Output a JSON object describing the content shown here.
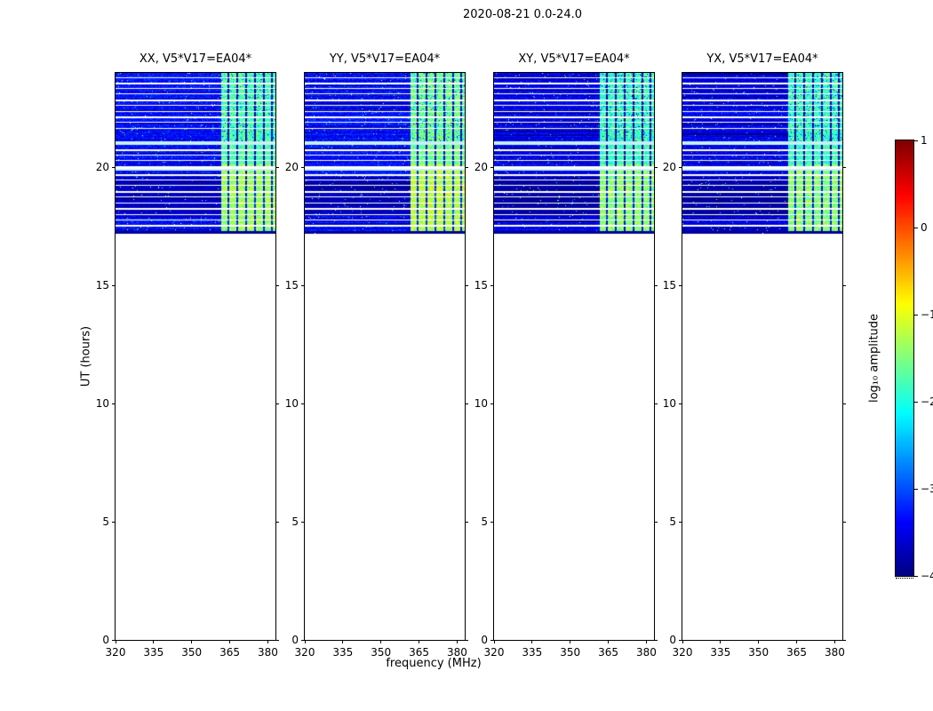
{
  "chart_data": {
    "type": "heatmap",
    "title": "2020-08-21 0.0-24.0",
    "xlabel": "frequency (MHz)",
    "ylabel": "UT (hours)",
    "xlim": [
      320,
      383
    ],
    "ylim": [
      0,
      24
    ],
    "xticks": [
      320,
      335,
      350,
      365,
      380
    ],
    "yticks": [
      0,
      5,
      10,
      15,
      20
    ],
    "panels": [
      {
        "label": "XX, V5*V17=EA04*",
        "noise_offset": 0,
        "band_offset": 0
      },
      {
        "label": "YY, V5*V17=EA04*",
        "noise_offset": 0,
        "band_offset": 0.15
      },
      {
        "label": "XY, V5*V17=EA04*",
        "noise_offset": -0.15,
        "band_offset": -0.1
      },
      {
        "label": "YX, V5*V17=EA04*",
        "noise_offset": -0.15,
        "band_offset": -0.1
      }
    ],
    "colorbar": {
      "label": "log₁₀ amplitude",
      "ticks": [
        1,
        0,
        -1,
        -2,
        -3,
        -4
      ],
      "range": [
        -4,
        1
      ],
      "colormap": "jet"
    },
    "data_extent": {
      "time_start": 17.2,
      "time_end": 24.0
    },
    "noise_log_amplitude": -3.35,
    "rfi_band": {
      "freq_start": 361.5,
      "freq_end": 383,
      "log_amp_lower": -1.35,
      "log_amp_upper": -1.75,
      "dark_columns": [
        364.5,
        368,
        371.5,
        375,
        378.5,
        381.5
      ]
    },
    "flagged_rows_hours": [
      17.57,
      17.79,
      18.02,
      18.28,
      18.51,
      18.77,
      19.0,
      19.26,
      19.49,
      19.71,
      20.31,
      20.54,
      20.77,
      21.67,
      21.93,
      22.16,
      22.38,
      22.64,
      22.87,
      23.13,
      23.36,
      23.6,
      23.82
    ],
    "gap_rows": [
      {
        "time": 20.05,
        "thickness": 3
      }
    ],
    "bright_rows": [
      {
        "time": 21.12,
        "thickness": 4
      },
      {
        "time": 19.95,
        "thickness": 2
      }
    ],
    "colors": {
      "bright_row": "#c6eff3",
      "background": "#ffffff",
      "axes": "#000000"
    }
  }
}
